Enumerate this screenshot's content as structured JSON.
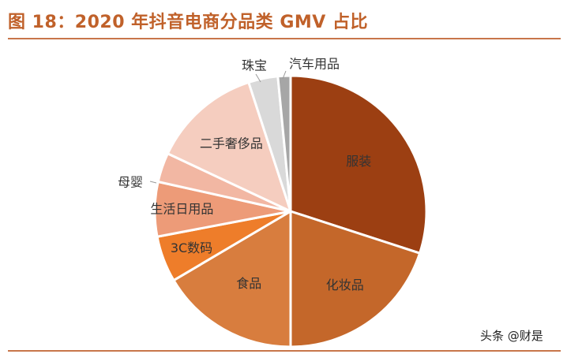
{
  "title": "图 18：2020 年抖音电商分品类 GMV 占比",
  "watermark": "头条 @财是",
  "chart_data": {
    "type": "pie",
    "title": "图 18：2020 年抖音电商分品类 GMV 占比",
    "start_angle_deg": 0,
    "direction": "clockwise",
    "slices": [
      {
        "label": "服装",
        "value": 30.0,
        "color": "#9c3f12",
        "label_color": "#333333",
        "label_pos": "inside"
      },
      {
        "label": "化妆品",
        "value": 20.0,
        "color": "#c4672a",
        "label_color": "#333333",
        "label_pos": "inside"
      },
      {
        "label": "食品",
        "value": 16.5,
        "color": "#d87d3e",
        "label_color": "#333333",
        "label_pos": "inside"
      },
      {
        "label": "3C数码",
        "value": 5.5,
        "color": "#ee7d2a",
        "label_color": "#333333",
        "label_pos": "inside"
      },
      {
        "label": "生活日用品",
        "value": 6.5,
        "color": "#ed9b78",
        "label_color": "#333333",
        "label_pos": "inside"
      },
      {
        "label": "母婴",
        "value": 3.5,
        "color": "#f2b7a3",
        "label_color": "#333333",
        "label_pos": "outside"
      },
      {
        "label": "二手奢侈品",
        "value": 13.0,
        "color": "#f5cdbf",
        "label_color": "#333333",
        "label_pos": "inside"
      },
      {
        "label": "珠宝",
        "value": 3.5,
        "color": "#d9d9d9",
        "label_color": "#333333",
        "label_pos": "outside"
      },
      {
        "label": "汽车用品",
        "value": 1.5,
        "color": "#a6a6a6",
        "label_color": "#333333",
        "label_pos": "outside"
      }
    ]
  }
}
